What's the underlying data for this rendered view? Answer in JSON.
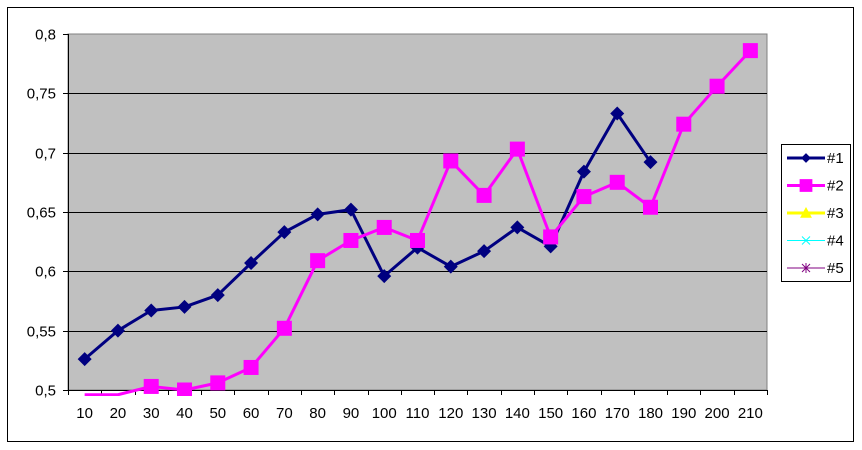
{
  "chart_data": {
    "type": "line",
    "title": "",
    "xlabel": "",
    "ylabel": "",
    "categories": [
      "10",
      "20",
      "30",
      "40",
      "50",
      "60",
      "70",
      "80",
      "90",
      "100",
      "110",
      "120",
      "130",
      "140",
      "150",
      "160",
      "170",
      "180",
      "190",
      "200",
      "210"
    ],
    "ylim": [
      0.5,
      0.8
    ],
    "yticks": [
      0.5,
      0.55,
      0.6,
      0.65,
      0.7,
      0.75,
      0.8
    ],
    "ytick_labels": [
      "0,5",
      "0,55",
      "0,6",
      "0,65",
      "0,7",
      "0,75",
      "0,8"
    ],
    "grid": true,
    "plot_background": "#C0C0C0",
    "legend_position": "right",
    "series": [
      {
        "name": "#1",
        "color": "#000080",
        "marker": "diamond",
        "line_width": 3,
        "values": [
          0.526,
          0.55,
          0.567,
          0.57,
          0.58,
          0.607,
          0.633,
          0.648,
          0.652,
          0.596,
          0.62,
          0.604,
          0.617,
          0.637,
          0.621,
          0.684,
          0.733,
          0.692,
          null,
          null,
          null
        ]
      },
      {
        "name": "#2",
        "color": "#FF00FF",
        "marker": "square",
        "line_width": 3,
        "values": [
          0.496,
          0.496,
          0.503,
          0.5,
          0.506,
          0.519,
          0.552,
          0.609,
          0.626,
          0.637,
          0.626,
          0.693,
          0.664,
          0.703,
          0.629,
          0.663,
          0.675,
          0.654,
          0.724,
          0.756,
          0.786
        ]
      },
      {
        "name": "#3",
        "color": "#FFFF00",
        "marker": "triangle",
        "line_width": 3,
        "values": []
      },
      {
        "name": "#4",
        "color": "#00FFFF",
        "marker": "x",
        "line_width": 1,
        "values": []
      },
      {
        "name": "#5",
        "color": "#800080",
        "marker": "star",
        "line_width": 1,
        "values": []
      }
    ]
  }
}
